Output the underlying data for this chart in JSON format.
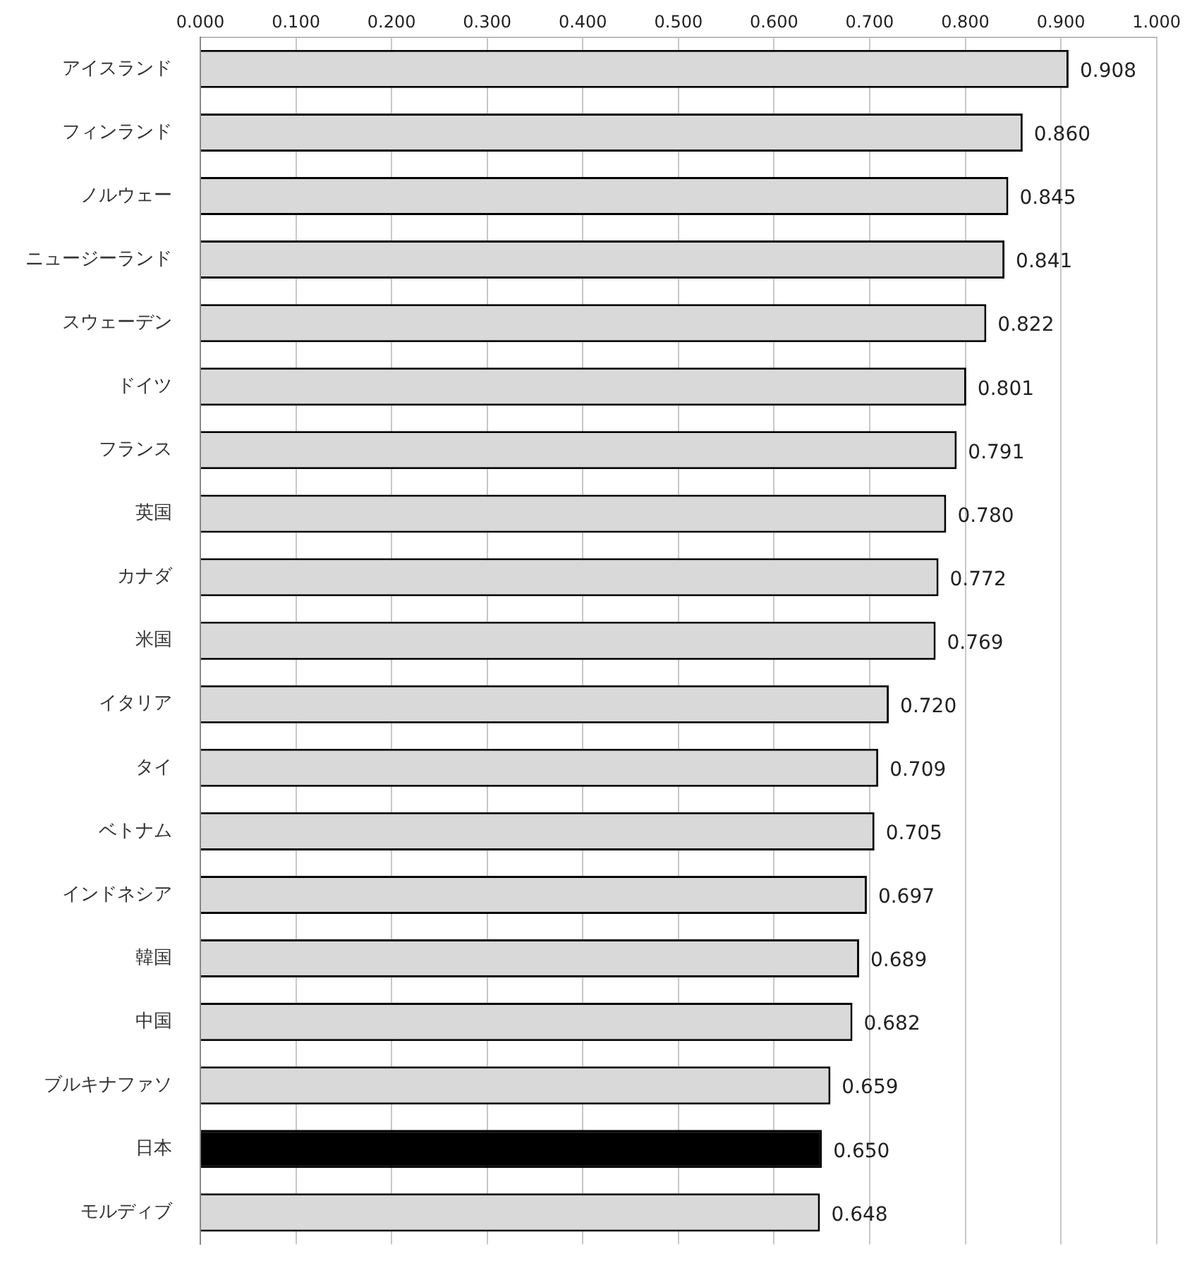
{
  "chart_data": {
    "type": "bar",
    "orientation": "horizontal",
    "categories": [
      "アイスランド",
      "フィンランド",
      "ノルウェー",
      "ニュージーランド",
      "スウェーデン",
      "ドイツ",
      "フランス",
      "英国",
      "カナダ",
      "米国",
      "イタリア",
      "タイ",
      "ベトナム",
      "インドネシア",
      "韓国",
      "中国",
      "ブルキナファソ",
      "日本",
      "モルディブ"
    ],
    "values": [
      0.908,
      0.86,
      0.845,
      0.841,
      0.822,
      0.801,
      0.791,
      0.78,
      0.772,
      0.769,
      0.72,
      0.709,
      0.705,
      0.697,
      0.689,
      0.682,
      0.659,
      0.65,
      0.648
    ],
    "value_labels": [
      "0.908",
      "0.860",
      "0.845",
      "0.841",
      "0.822",
      "0.801",
      "0.791",
      "0.780",
      "0.772",
      "0.769",
      "0.720",
      "0.709",
      "0.705",
      "0.697",
      "0.689",
      "0.682",
      "0.659",
      "0.650",
      "0.648"
    ],
    "colors": [
      "#d9d9d9",
      "#d9d9d9",
      "#d9d9d9",
      "#d9d9d9",
      "#d9d9d9",
      "#d9d9d9",
      "#d9d9d9",
      "#d9d9d9",
      "#d9d9d9",
      "#d9d9d9",
      "#d9d9d9",
      "#d9d9d9",
      "#d9d9d9",
      "#d9d9d9",
      "#d9d9d9",
      "#d9d9d9",
      "#d9d9d9",
      "#000000",
      "#d9d9d9"
    ],
    "xlim": [
      0,
      1
    ],
    "xticks": [
      {
        "value": 0,
        "label": "0.000"
      },
      {
        "value": 0.1,
        "label": "0.100"
      },
      {
        "value": 0.2,
        "label": "0.200"
      },
      {
        "value": 0.3,
        "label": "0.300"
      },
      {
        "value": 0.4,
        "label": "0.400"
      },
      {
        "value": 0.5,
        "label": "0.500"
      },
      {
        "value": 0.6,
        "label": "0.600"
      },
      {
        "value": 0.7,
        "label": "0.700"
      },
      {
        "value": 0.8,
        "label": "0.800"
      },
      {
        "value": 0.9,
        "label": "0.900"
      },
      {
        "value": 1,
        "label": "1.000"
      }
    ],
    "grid": "x"
  }
}
